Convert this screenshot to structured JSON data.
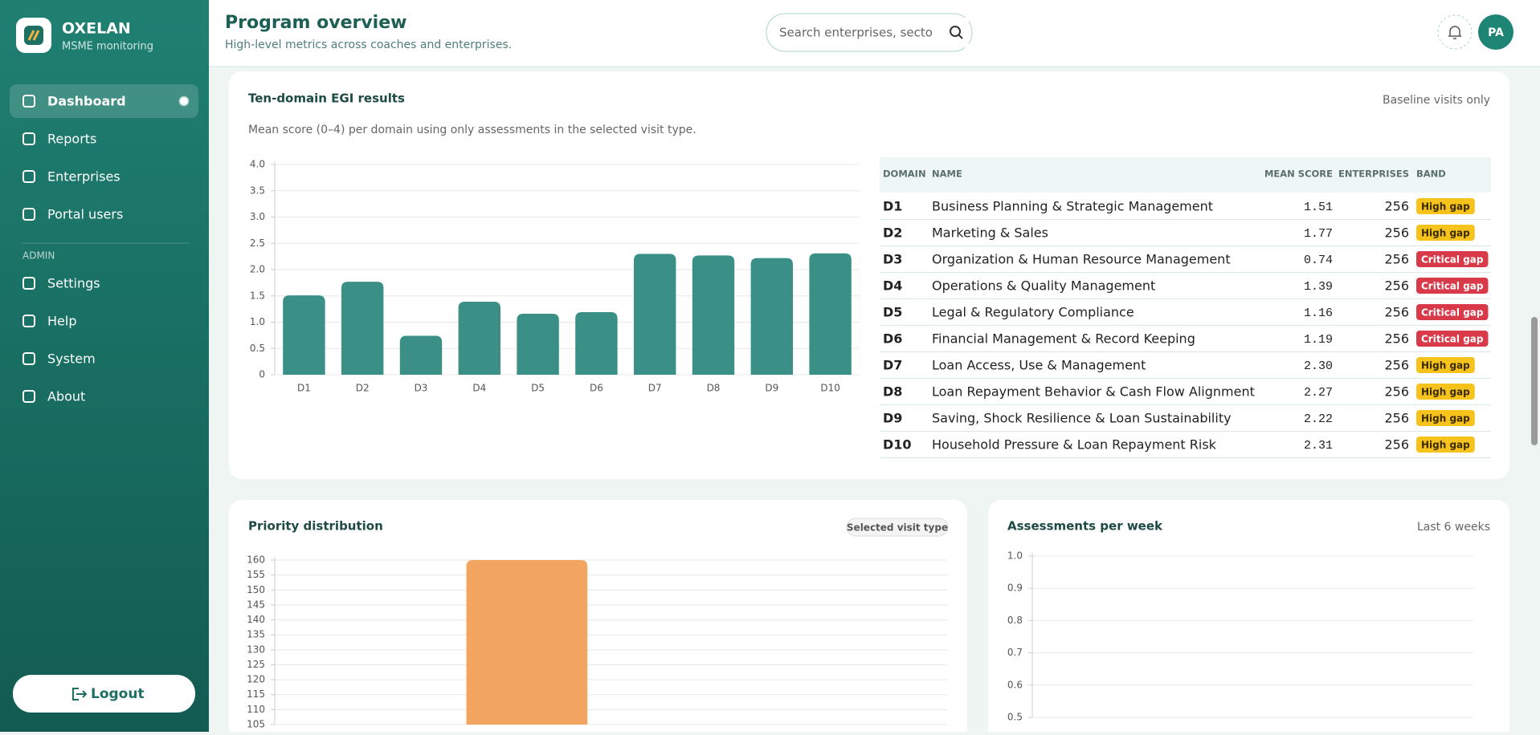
{
  "sidebar": {
    "brand": "OXELAN",
    "subtitle": "MSME monitoring",
    "nav": [
      "Dashboard",
      "Reports",
      "Enterprises",
      "Portal users"
    ],
    "admin_label": "ADMIN",
    "admin_nav": [
      "Settings",
      "Help",
      "System",
      "About"
    ],
    "logout": "Logout"
  },
  "header": {
    "title": "Program overview",
    "subtitle": "High-level metrics across coaches and enterprises.",
    "search_placeholder": "Search enterprises, sectors",
    "avatar": "PA"
  },
  "egi": {
    "title": "Ten-domain EGI results",
    "tag": "Baseline visits only",
    "description": "Mean score (0–4) per domain using only assessments in the selected visit type.",
    "chart": {
      "type": "bar",
      "categories": [
        "D1",
        "D2",
        "D3",
        "D4",
        "D5",
        "D6",
        "D7",
        "D8",
        "D9",
        "D10"
      ],
      "values": [
        1.51,
        1.77,
        0.74,
        1.39,
        1.16,
        1.19,
        2.3,
        2.27,
        2.22,
        2.31
      ],
      "color": "#3a9087",
      "ylim": [
        0,
        4
      ],
      "yticks": [
        0,
        0.5,
        {
          "value": 1,
          "label": "1.0"
        },
        1.5,
        {
          "value": 2,
          "label": "2.0"
        },
        2.5,
        {
          "value": 3,
          "label": "3.0"
        },
        3.5,
        {
          "value": 4,
          "label": "4.0"
        }
      ],
      "grid": true
    },
    "table": {
      "columns": [
        "DOMAIN",
        "NAME",
        "MEAN SCORE",
        "ENTERPRISES",
        "BAND"
      ],
      "rows": [
        {
          "domain": "D1",
          "name": "Business Planning & Strategic Management",
          "mean": "1.51",
          "enterprises": "256",
          "band": "High gap",
          "band_color": "#f6c21c"
        },
        {
          "domain": "D2",
          "name": "Marketing & Sales",
          "mean": "1.77",
          "enterprises": "256",
          "band": "High gap",
          "band_color": "#f6c21c"
        },
        {
          "domain": "D3",
          "name": "Organization & Human Resource Management",
          "mean": "0.74",
          "enterprises": "256",
          "band": "Critical gap",
          "band_color": "#d93a4a"
        },
        {
          "domain": "D4",
          "name": "Operations & Quality Management",
          "mean": "1.39",
          "enterprises": "256",
          "band": "Critical gap",
          "band_color": "#d93a4a"
        },
        {
          "domain": "D5",
          "name": "Legal & Regulatory Compliance",
          "mean": "1.16",
          "enterprises": "256",
          "band": "Critical gap",
          "band_color": "#d93a4a"
        },
        {
          "domain": "D6",
          "name": "Financial Management & Record Keeping",
          "mean": "1.19",
          "enterprises": "256",
          "band": "Critical gap",
          "band_color": "#d93a4a"
        },
        {
          "domain": "D7",
          "name": "Loan Access, Use & Management",
          "mean": "2.30",
          "enterprises": "256",
          "band": "High gap",
          "band_color": "#f6c21c"
        },
        {
          "domain": "D8",
          "name": "Loan Repayment Behavior & Cash Flow Alignment",
          "mean": "2.27",
          "enterprises": "256",
          "band": "High gap",
          "band_color": "#f6c21c"
        },
        {
          "domain": "D9",
          "name": "Saving, Shock Resilience & Loan Sustainability",
          "mean": "2.22",
          "enterprises": "256",
          "band": "High gap",
          "band_color": "#f6c21c"
        },
        {
          "domain": "D10",
          "name": "Household Pressure & Loan Repayment Risk",
          "mean": "2.31",
          "enterprises": "256",
          "band": "High gap",
          "band_color": "#f6c21c"
        }
      ]
    }
  },
  "priority": {
    "title": "Priority distribution",
    "tag": "Selected visit type",
    "chart": {
      "type": "bar",
      "categories": [
        null,
        null,
        null,
        null
      ],
      "values": [
        null,
        160,
        null,
        null
      ],
      "color": "#f2a461",
      "ylim": [
        105,
        160
      ],
      "yticks": [
        105,
        110,
        115,
        120,
        125,
        130,
        135,
        140,
        145,
        150,
        155,
        160
      ],
      "grid": true
    }
  },
  "weekly": {
    "title": "Assessments per week",
    "tag": "Last 6 weeks",
    "chart": {
      "type": "line",
      "ylim": [
        0.5,
        1
      ],
      "yticks": [
        0.5,
        0.6,
        0.7,
        0.8,
        0.9,
        {
          "value": 1,
          "label": "1.0"
        }
      ],
      "grid": true
    }
  }
}
